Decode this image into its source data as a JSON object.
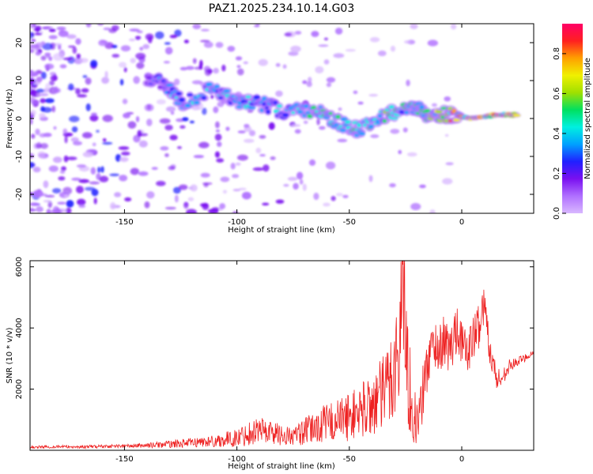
{
  "title": "PAZ1.2025.234.10.14.G03",
  "colors": {
    "background": "#ffffff",
    "axes": "#000000",
    "snr_line": "#ee2222",
    "colormap": [
      "#ffffff",
      "#d9b8ff",
      "#b070ff",
      "#7a10f0",
      "#2020ff",
      "#00a0ff",
      "#00f0e0",
      "#00e060",
      "#a0e000",
      "#f0f000",
      "#ffa000",
      "#ff2020",
      "#ff0066"
    ]
  },
  "chart_data": [
    {
      "type": "heatmap",
      "title": "PAZ1.2025.234.10.14.G03",
      "xlabel": "Height of straight line (km)",
      "ylabel": "Frequency (Hz)",
      "xlim": [
        -192,
        32
      ],
      "ylim": [
        -25,
        25
      ],
      "xticks": [
        -150,
        -100,
        -50,
        0
      ],
      "yticks": [
        -20,
        -10,
        0,
        10,
        20
      ],
      "colorbar": {
        "label": "Normalized spectral amplitude",
        "range": [
          0,
          0.95
        ],
        "ticks": [
          "0.0",
          "0.2",
          "0.4",
          "0.6",
          "0.8"
        ]
      },
      "ridge": [
        {
          "height_km": -140,
          "freq_hz": 11,
          "amp": 0.25
        },
        {
          "height_km": -132,
          "freq_hz": 9,
          "amp": 0.35
        },
        {
          "height_km": -124,
          "freq_hz": 4,
          "amp": 0.45
        },
        {
          "height_km": -110,
          "freq_hz": 8,
          "amp": 0.4
        },
        {
          "height_km": -100,
          "freq_hz": 4,
          "amp": 0.45
        },
        {
          "height_km": -90,
          "freq_hz": 4,
          "amp": 0.4
        },
        {
          "height_km": -80,
          "freq_hz": 2,
          "amp": 0.4
        },
        {
          "height_km": -65,
          "freq_hz": 2,
          "amp": 0.5
        },
        {
          "height_km": -55,
          "freq_hz": -1,
          "amp": 0.55
        },
        {
          "height_km": -45,
          "freq_hz": -3,
          "amp": 0.5
        },
        {
          "height_km": -33,
          "freq_hz": 1,
          "amp": 0.55
        },
        {
          "height_km": -22,
          "freq_hz": 3,
          "amp": 0.5
        },
        {
          "height_km": -15,
          "freq_hz": 1,
          "amp": 0.6
        },
        {
          "height_km": -5,
          "freq_hz": 1,
          "amp": 0.85
        },
        {
          "height_km": 5,
          "freq_hz": 0,
          "amp": 0.85
        },
        {
          "height_km": 15,
          "freq_hz": 1,
          "amp": 0.85
        },
        {
          "height_km": 25,
          "freq_hz": 1,
          "amp": 0.85
        }
      ]
    },
    {
      "type": "line",
      "xlabel": "Height of straight line (km)",
      "ylabel": "SNR (10 * v/v)",
      "xlim": [
        -192,
        32
      ],
      "ylim": [
        0,
        6200
      ],
      "xticks": [
        -150,
        -100,
        -50,
        0
      ],
      "yticks": [
        2000,
        4000,
        6000
      ],
      "series": [
        {
          "name": "SNR",
          "x": [
            -192,
            -180,
            -170,
            -160,
            -150,
            -140,
            -130,
            -120,
            -110,
            -100,
            -95,
            -90,
            -85,
            -80,
            -75,
            -70,
            -65,
            -60,
            -55,
            -50,
            -45,
            -40,
            -35,
            -32,
            -30,
            -28,
            -26,
            -25,
            -24,
            -22,
            -20,
            -18,
            -15,
            -12,
            -10,
            -8,
            -5,
            -2,
            0,
            2,
            5,
            8,
            10,
            12,
            15,
            18,
            20,
            25,
            32
          ],
          "y": [
            100,
            120,
            110,
            130,
            140,
            160,
            200,
            250,
            300,
            400,
            550,
            700,
            600,
            500,
            450,
            600,
            750,
            900,
            1000,
            1100,
            1300,
            1500,
            1800,
            2300,
            2800,
            3100,
            6100,
            3500,
            2500,
            1500,
            800,
            1500,
            3000,
            3500,
            3300,
            3600,
            3200,
            4200,
            3500,
            3200,
            3600,
            4200,
            4800,
            3600,
            2400,
            2300,
            2700,
            2900,
            3200
          ],
          "spread": [
            40,
            50,
            50,
            60,
            60,
            80,
            120,
            150,
            200,
            300,
            400,
            450,
            400,
            350,
            300,
            450,
            550,
            650,
            700,
            800,
            900,
            1100,
            1300,
            1600,
            1800,
            2000,
            2500,
            2200,
            1800,
            1200,
            700,
            900,
            1000,
            800,
            800,
            800,
            900,
            900,
            700,
            700,
            800,
            800,
            600,
            600,
            500,
            300,
            250,
            150,
            100
          ]
        }
      ]
    }
  ]
}
